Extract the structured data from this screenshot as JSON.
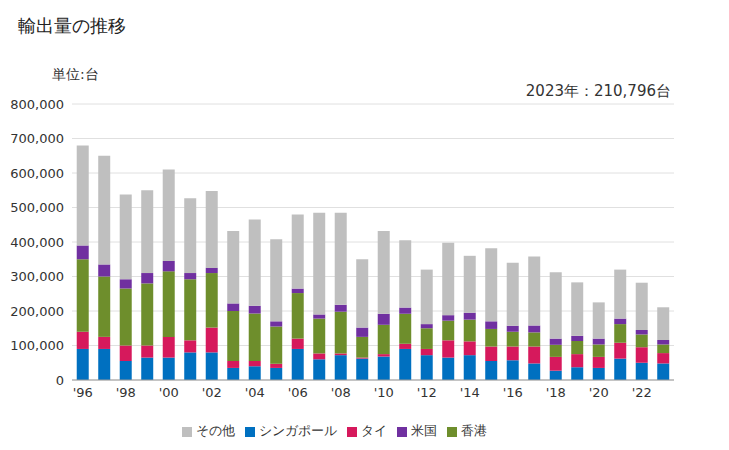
{
  "chart_data": {
    "type": "bar",
    "title": "輸出量の推移",
    "subtitle": "単位:台",
    "annotation": "2023年：210,796台",
    "stacked": true,
    "grid": true,
    "legend": "bottom",
    "categories": [
      "'96",
      null,
      "'98",
      null,
      "'00",
      null,
      "'02",
      null,
      "'04",
      null,
      "'06",
      null,
      "'08",
      null,
      "'10",
      null,
      "'12",
      null,
      "'14",
      null,
      "'16",
      null,
      "'18",
      null,
      "'20",
      null,
      "'22",
      null
    ],
    "ylim": [
      0,
      800000
    ],
    "yticks": [
      0,
      {
        "value": 100000,
        "label": "100,000"
      },
      {
        "value": 200000,
        "label": "200,000"
      },
      {
        "value": 300000,
        "label": "300,000"
      },
      {
        "value": 400000,
        "label": "400,000"
      },
      {
        "value": 500000,
        "label": "500,000"
      },
      {
        "value": 600000,
        "label": "600,000"
      },
      {
        "value": 700000,
        "label": "700,000"
      },
      {
        "value": 800000,
        "label": "800,000"
      }
    ],
    "series": [
      {
        "name": "シンガポール",
        "color": "#0070C0",
        "values": [
          90000,
          90000,
          55000,
          65000,
          65000,
          80000,
          80000,
          35000,
          40000,
          35000,
          90000,
          60000,
          72000,
          62000,
          68000,
          90000,
          72000,
          65000,
          72000,
          55000,
          57000,
          48000,
          27000,
          37000,
          35000,
          62000,
          50000,
          48000
        ]
      },
      {
        "name": "タイ",
        "color": "#D6195C",
        "values": [
          50000,
          35000,
          45000,
          35000,
          60000,
          35000,
          72000,
          20000,
          15000,
          12000,
          30000,
          17000,
          5000,
          3000,
          7000,
          15000,
          18000,
          50000,
          40000,
          42000,
          40000,
          49000,
          40000,
          38000,
          32000,
          46000,
          45000,
          30000
        ]
      },
      {
        "name": "香港",
        "color": "#6E8E2C",
        "values": [
          210000,
          175000,
          165000,
          180000,
          190000,
          177000,
          158000,
          145000,
          138000,
          108000,
          132000,
          101000,
          121000,
          60000,
          85000,
          87000,
          60000,
          57000,
          63000,
          51000,
          43000,
          41000,
          35000,
          38000,
          36000,
          54000,
          37000,
          25000
        ]
      },
      {
        "name": "米国",
        "color": "#7030A0",
        "values": [
          40000,
          35000,
          27000,
          30000,
          30000,
          18000,
          15000,
          22000,
          22000,
          15000,
          13000,
          12000,
          20000,
          27000,
          32000,
          18000,
          12000,
          16000,
          20000,
          22000,
          17000,
          20000,
          18000,
          15000,
          17000,
          16000,
          13000,
          13000
        ]
      },
      {
        "name": "その他",
        "color": "#BFBFBF",
        "values": [
          290000,
          315000,
          246000,
          240000,
          265000,
          217000,
          223000,
          210000,
          250000,
          238000,
          215000,
          295000,
          267000,
          198000,
          240000,
          195000,
          158000,
          210000,
          165000,
          212000,
          183000,
          200000,
          192000,
          155000,
          105000,
          142000,
          137000,
          94796
        ]
      }
    ]
  }
}
